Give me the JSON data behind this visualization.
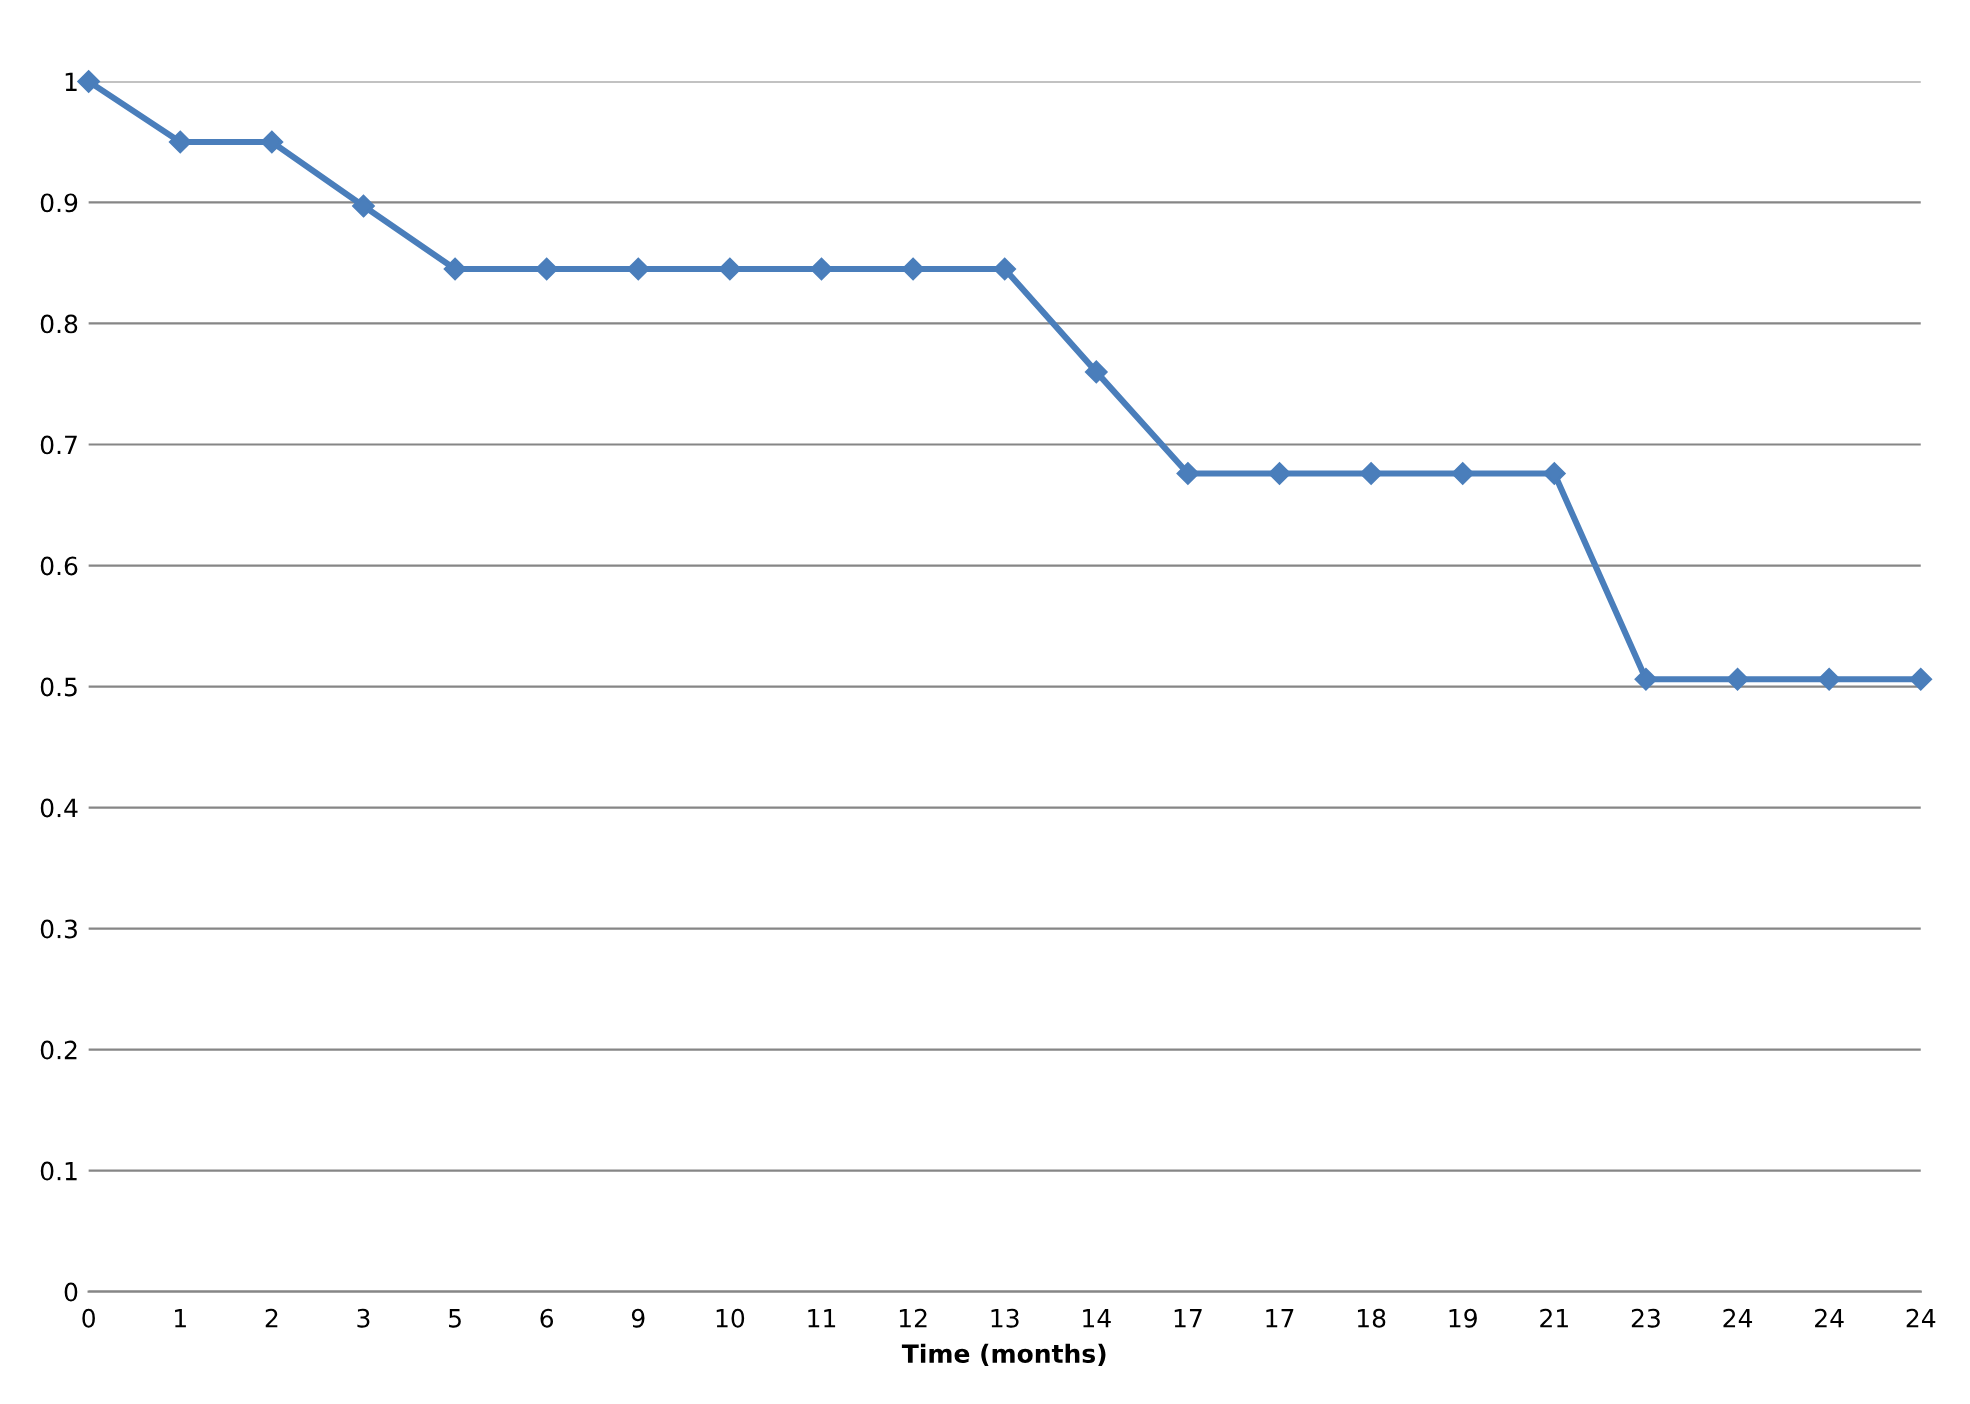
{
  "chart_data": {
    "type": "line",
    "xlabel": "Time (months)",
    "categories": [
      "0",
      "1",
      "2",
      "3",
      "5",
      "6",
      "9",
      "10",
      "11",
      "12",
      "13",
      "14",
      "17",
      "17",
      "18",
      "19",
      "21",
      "23",
      "24",
      "24",
      "24"
    ],
    "series": [
      {
        "color": "#4a7ebb",
        "values": [
          1.0,
          0.95,
          0.95,
          0.897,
          0.845,
          0.845,
          0.845,
          0.845,
          0.845,
          0.845,
          0.845,
          0.76,
          0.676,
          0.676,
          0.676,
          0.676,
          0.676,
          0.506,
          0.506,
          0.506,
          0.506
        ]
      }
    ],
    "ylim": [
      0,
      1
    ],
    "yticks": [
      0,
      0.1,
      0.2,
      0.3,
      0.4,
      0.5,
      0.6,
      0.7,
      0.8,
      0.9,
      1
    ],
    "grid": "y",
    "marker": "diamond",
    "line_style": "solid"
  }
}
